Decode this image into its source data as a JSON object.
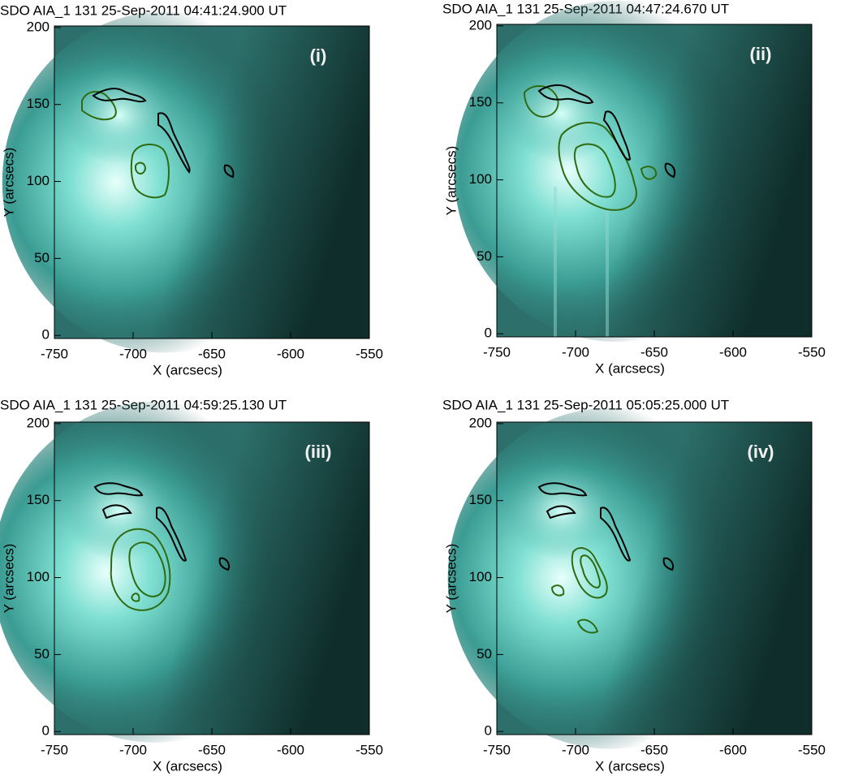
{
  "chart_data": [
    {
      "type": "image",
      "title": "SDO AIA_1 131 25-Sep-2011 04:41:24.900 UT",
      "panel_label": "(i)",
      "x_label": "X (arcsecs)",
      "y_label": "Y (arcsecs)",
      "xlim": [
        -750,
        -550
      ],
      "ylim": [
        -2,
        201
      ],
      "xticks": [
        -750,
        -700,
        -650,
        -600,
        -550
      ],
      "yticks": [
        0,
        50,
        100,
        150,
        200
      ]
    },
    {
      "type": "image",
      "title": "SDO AIA_1 131 25-Sep-2011 04:47:24.670 UT",
      "panel_label": "(ii)",
      "x_label": "X (arcsecs)",
      "y_label": "Y (arcsecs)",
      "xlim": [
        -750,
        -550
      ],
      "ylim": [
        -2,
        201
      ],
      "xticks": [
        -750,
        -700,
        -650,
        -600,
        -550
      ],
      "yticks": [
        0,
        50,
        100,
        150,
        200
      ]
    },
    {
      "type": "image",
      "title": "SDO AIA_1 131 25-Sep-2011 04:59:25.130 UT",
      "panel_label": "(iii)",
      "x_label": "X (arcsecs)",
      "y_label": "Y (arcsecs)",
      "xlim": [
        -750,
        -550
      ],
      "ylim": [
        -2,
        201
      ],
      "xticks": [
        -750,
        -700,
        -650,
        -600,
        -550
      ],
      "yticks": [
        0,
        50,
        100,
        150,
        200
      ]
    },
    {
      "type": "image",
      "title": "SDO AIA_1 131 25-Sep-2011 05:05:25.000 UT",
      "panel_label": "(iv)",
      "x_label": "X (arcsecs)",
      "y_label": "Y (arcsecs)",
      "xlim": [
        -750,
        -550
      ],
      "ylim": [
        -2,
        201
      ],
      "xticks": [
        -750,
        -700,
        -650,
        -600,
        -550
      ],
      "yticks": [
        0,
        50,
        100,
        150,
        200
      ]
    }
  ]
}
